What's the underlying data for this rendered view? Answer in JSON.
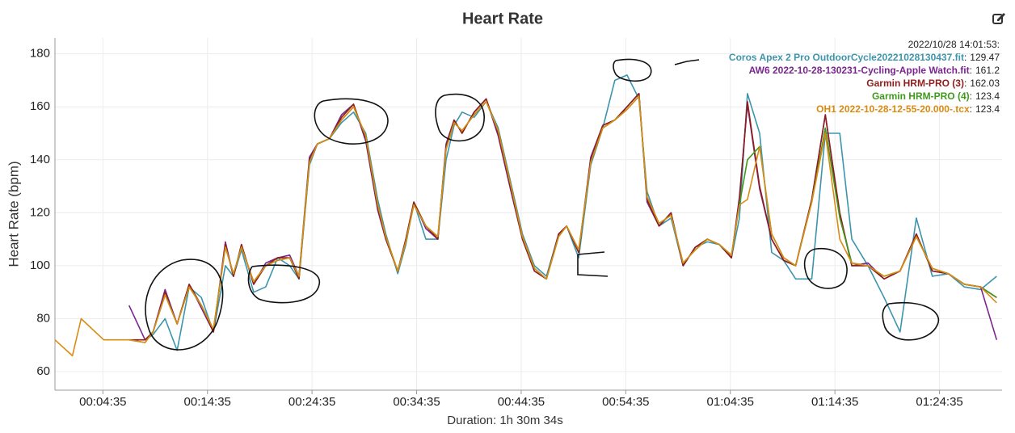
{
  "chart_data": {
    "type": "line",
    "title": "Heart Rate",
    "y_label": "Heart Rate (bpm)",
    "x_label": "Duration: 1h 30m 34s",
    "xlim": [
      0,
      5434
    ],
    "ylim": [
      53,
      186
    ],
    "xticks": [
      {
        "value": 275,
        "label": "00:04:35"
      },
      {
        "value": 875,
        "label": "00:14:35"
      },
      {
        "value": 1475,
        "label": "00:24:35"
      },
      {
        "value": 2075,
        "label": "00:34:35"
      },
      {
        "value": 2675,
        "label": "00:44:35"
      },
      {
        "value": 3275,
        "label": "00:54:35"
      },
      {
        "value": 3875,
        "label": "01:04:35"
      },
      {
        "value": 4475,
        "label": "01:14:35"
      },
      {
        "value": 5075,
        "label": "01:24:35"
      }
    ],
    "yticks": [
      60,
      80,
      100,
      120,
      140,
      160,
      180
    ],
    "grid": true,
    "x": [
      0,
      100,
      150,
      280,
      380,
      425,
      517,
      563,
      632,
      701,
      770,
      840,
      909,
      978,
      1024,
      1070,
      1140,
      1209,
      1278,
      1347,
      1400,
      1460,
      1506,
      1575,
      1644,
      1713,
      1783,
      1852,
      1898,
      1967,
      2013,
      2059,
      2128,
      2197,
      2244,
      2290,
      2336,
      2405,
      2474,
      2543,
      2613,
      2682,
      2751,
      2820,
      2890,
      2936,
      3005,
      3074,
      3143,
      3212,
      3282,
      3351,
      3397,
      3466,
      3535,
      3604,
      3674,
      3743,
      3812,
      3881,
      3927,
      3973,
      4043,
      4112,
      4181,
      4250,
      4342,
      4420,
      4503,
      4572,
      4665,
      4757,
      4849,
      4942,
      5034,
      5126,
      5218,
      5311,
      5403
    ],
    "series": [
      {
        "name": "Coros Apex 2 Pro OutdoorCycle20221028130437.fit",
        "color": "#3d95ad",
        "values": [
          null,
          null,
          null,
          null,
          null,
          null,
          72,
          74,
          80,
          68,
          92,
          88,
          75,
          100,
          96,
          106,
          90,
          92,
          103,
          100,
          95,
          138,
          146,
          148,
          154,
          158,
          150,
          125,
          112,
          97,
          108,
          124,
          110,
          110,
          140,
          153,
          158,
          156,
          162,
          152,
          132,
          112,
          100,
          96,
          112,
          115,
          103,
          138,
          152,
          170,
          172,
          163,
          128,
          115,
          118,
          100,
          107,
          109,
          108,
          103,
          118,
          165,
          150,
          105,
          102,
          95,
          95,
          150,
          150,
          110,
          100,
          88,
          75,
          118,
          96,
          97,
          92,
          91,
          96
        ]
      },
      {
        "name": "AW6 2022-10-28-130231-Cycling-Apple Watch.fit",
        "color": "#7b2590",
        "values": [
          null,
          null,
          null,
          null,
          null,
          85,
          72,
          75,
          91,
          78,
          93,
          84,
          75,
          109,
          96,
          108,
          93,
          101,
          103,
          104,
          96,
          141,
          146,
          148,
          157,
          161,
          147,
          121,
          110,
          98,
          110,
          124,
          114,
          110,
          146,
          155,
          150,
          158,
          163,
          149,
          129,
          110,
          98,
          95,
          112,
          115,
          105,
          141,
          153,
          155,
          160,
          165,
          124,
          115,
          120,
          100,
          107,
          110,
          108,
          103,
          126,
          161,
          129,
          110,
          102,
          100,
          125,
          157,
          119,
          100,
          101,
          95,
          98,
          112,
          98,
          97,
          93,
          92,
          72
        ]
      },
      {
        "name": "Garmin HRM-PRO (3)",
        "color": "#8f1d1d",
        "values": [
          null,
          null,
          null,
          null,
          null,
          72,
          72,
          75,
          90,
          78,
          93,
          85,
          75,
          108,
          96,
          108,
          93,
          100,
          103,
          103,
          95,
          140,
          146,
          148,
          156,
          161,
          148,
          122,
          110,
          98,
          110,
          124,
          115,
          110,
          145,
          155,
          150,
          158,
          163,
          150,
          130,
          110,
          98,
          95,
          112,
          115,
          105,
          140,
          153,
          155,
          160,
          165,
          125,
          115,
          120,
          100,
          107,
          110,
          108,
          103,
          125,
          162,
          130,
          110,
          102,
          100,
          125,
          157,
          120,
          100,
          100,
          95,
          98,
          112,
          98,
          97,
          93,
          92,
          88
        ]
      },
      {
        "name": "Garmin HRM-PRO (4)",
        "color": "#3f9a1c",
        "values": [
          null,
          null,
          null,
          null,
          null,
          72,
          71,
          75,
          89,
          78,
          92,
          85,
          76,
          107,
          97,
          107,
          94,
          100,
          102,
          103,
          96,
          139,
          146,
          148,
          155,
          160,
          149,
          123,
          111,
          98,
          109,
          123,
          115,
          111,
          144,
          154,
          151,
          157,
          162,
          151,
          131,
          111,
          99,
          95,
          111,
          115,
          106,
          139,
          152,
          155,
          159,
          164,
          126,
          116,
          119,
          101,
          106,
          110,
          108,
          104,
          123,
          140,
          145,
          112,
          103,
          100,
          124,
          152,
          118,
          101,
          100,
          96,
          98,
          111,
          99,
          97,
          93,
          92,
          88
        ]
      },
      {
        "name": "OH1 2022-10-28-12-55-20.000-.tcx",
        "color": "#d98b12",
        "values": [
          72,
          66,
          80,
          72,
          72,
          72,
          71,
          75,
          89,
          78,
          92,
          85,
          76,
          107,
          97,
          107,
          94,
          100,
          102,
          103,
          96,
          139,
          146,
          148,
          155,
          160,
          149,
          123,
          111,
          98,
          109,
          123,
          115,
          111,
          144,
          154,
          151,
          157,
          162,
          151,
          131,
          111,
          99,
          95,
          111,
          115,
          106,
          139,
          152,
          155,
          159,
          164,
          126,
          116,
          119,
          101,
          106,
          110,
          108,
          104,
          123,
          125,
          145,
          112,
          103,
          100,
          124,
          150,
          110,
          101,
          100,
          96,
          98,
          111,
          99,
          97,
          93,
          92,
          86
        ]
      }
    ],
    "tooltip": {
      "time": "2022/10/28 14:01:53:",
      "separator": ":",
      "values": [
        129.47,
        161.2,
        162.03,
        123.4,
        123.4
      ]
    }
  }
}
